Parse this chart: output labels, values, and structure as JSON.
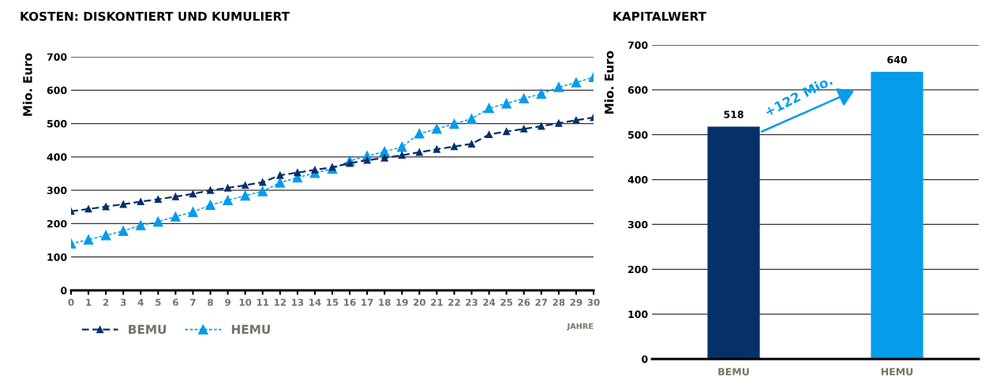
{
  "chart_data": [
    {
      "type": "line",
      "title": "KOSTEN: DISKONTIERT UND KUMULIERT",
      "ylabel": "Mio. Euro",
      "xlabel": "JAHRE",
      "x": [
        0,
        1,
        2,
        3,
        4,
        5,
        6,
        7,
        8,
        9,
        10,
        11,
        12,
        13,
        14,
        15,
        16,
        17,
        18,
        19,
        20,
        21,
        22,
        23,
        24,
        25,
        26,
        27,
        28,
        29,
        30
      ],
      "series": [
        {
          "name": "BEMU",
          "color": "#06306a",
          "line_style": "dashed",
          "values": [
            237,
            244,
            251,
            258,
            266,
            273,
            281,
            289,
            300,
            307,
            315,
            324,
            345,
            353,
            361,
            369,
            381,
            390,
            397,
            405,
            414,
            423,
            431,
            439,
            467,
            476,
            484,
            492,
            501,
            510,
            518
          ]
        },
        {
          "name": "HEMU",
          "color": "#049ceb",
          "line_style": "dotted",
          "values": [
            140,
            152,
            165,
            178,
            195,
            206,
            221,
            235,
            256,
            270,
            284,
            297,
            323,
            338,
            352,
            364,
            388,
            403,
            416,
            430,
            470,
            484,
            499,
            514,
            546,
            560,
            575,
            589,
            609,
            623,
            639
          ]
        }
      ],
      "xlim": [
        0,
        30
      ],
      "xticks": [
        0,
        1,
        2,
        3,
        4,
        5,
        6,
        7,
        8,
        9,
        10,
        11,
        12,
        13,
        14,
        15,
        16,
        17,
        18,
        19,
        20,
        21,
        22,
        23,
        24,
        25,
        26,
        27,
        28,
        29,
        30
      ],
      "ylim": [
        0,
        700
      ],
      "yticks": [
        0,
        100,
        200,
        300,
        400,
        500,
        600,
        700
      ],
      "grid": "y",
      "legend": "bottom left",
      "marker": "triangle"
    },
    {
      "type": "bar",
      "title": "KAPITALWERT",
      "ylabel": "Mio. Euro",
      "categories": [
        "BEMU",
        "HEMU"
      ],
      "values": [
        518,
        640
      ],
      "colors": [
        "#06306a",
        "#049ceb"
      ],
      "ylim": [
        0,
        700
      ],
      "yticks": [
        0,
        100,
        200,
        300,
        400,
        500,
        600,
        700
      ],
      "grid": "y",
      "data_labels": true,
      "annotations": [
        "+122 Mio."
      ]
    }
  ]
}
